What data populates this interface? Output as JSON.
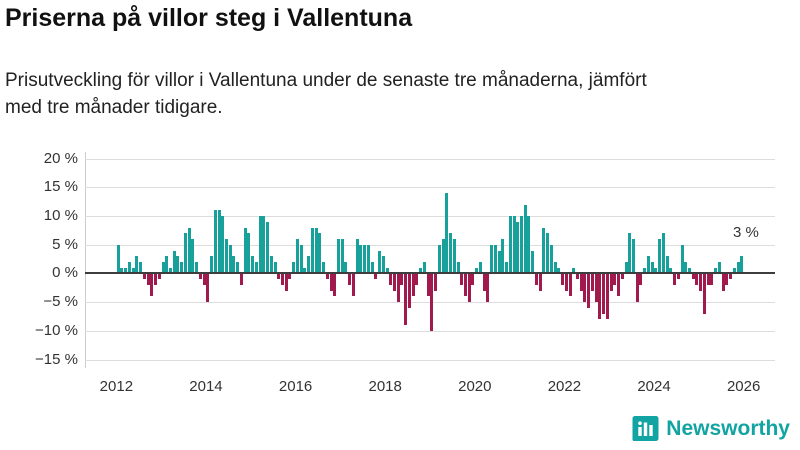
{
  "header": {
    "title": "Priserna på villor steg i Vallentuna",
    "subtitle": "Prisutveckling för villor i Vallentuna under de senaste tre månaderna, jämfört med tre månader tidigare."
  },
  "chart_data": {
    "type": "bar",
    "title": "Priserna på villor steg i Vallentuna",
    "xlabel": "",
    "ylabel": "",
    "frequency": "monthly",
    "x_start_year": 2012,
    "values": [
      5,
      1,
      1,
      2,
      1,
      3,
      2,
      -1,
      -2,
      -4,
      -2,
      -1,
      2,
      3,
      1,
      4,
      3,
      2,
      7,
      8,
      6,
      2,
      -1,
      -2,
      -5,
      3,
      11,
      11,
      10,
      6,
      5,
      3,
      2,
      -2,
      8,
      7,
      3,
      2,
      10,
      10,
      9,
      3,
      2,
      -1,
      -2,
      -3,
      -1,
      2,
      6,
      5,
      1,
      3,
      8,
      8,
      7,
      2,
      -1,
      -3,
      -4,
      6,
      6,
      2,
      -2,
      -4,
      6,
      5,
      5,
      5,
      2,
      -1,
      4,
      3,
      1,
      -2,
      -3,
      -5,
      -2,
      -9,
      -6,
      -4,
      -2,
      1,
      2,
      -4,
      -10,
      -3,
      5,
      6,
      14,
      7,
      6,
      2,
      -2,
      -4,
      -5,
      -2,
      1,
      2,
      -3,
      -5,
      5,
      5,
      4,
      6,
      2,
      10,
      10,
      9,
      10,
      12,
      10,
      4,
      -2,
      -3,
      8,
      7,
      5,
      2,
      1,
      -2,
      -3,
      -4,
      1,
      -1,
      -3,
      -5,
      -6,
      -3,
      -5,
      -8,
      -7,
      -8,
      -3,
      -2,
      -4,
      -1,
      2,
      7,
      6,
      -5,
      -2,
      1,
      3,
      2,
      1,
      6,
      7,
      3,
      1,
      -2,
      -1,
      5,
      2,
      1,
      -1,
      -2,
      -3,
      -7,
      -2,
      -2,
      1,
      2,
      -3,
      -2,
      -1,
      1,
      2,
      3
    ],
    "yticks": {
      "values": [
        20,
        15,
        10,
        5,
        0,
        -5,
        -10,
        -15
      ],
      "labels": [
        "20 %",
        "15 %",
        "10 %",
        "5 %",
        "0 %",
        "−5 %",
        "−10 %",
        "−15 %"
      ]
    },
    "xticks": [
      2012,
      2014,
      2016,
      2018,
      2020,
      2022,
      2024,
      2026
    ],
    "ylim": [
      -17.5,
      21.5
    ],
    "xlim": [
      2011.3,
      2026.7
    ],
    "grid": "horizontal",
    "legend": "none",
    "positive_color": "#18a09b",
    "negative_color": "#a11a4d",
    "annotation": {
      "text": "3 %",
      "x": 2026.05,
      "y": 7
    }
  },
  "footer": {
    "brand": "Newsworthy",
    "brand_color": "#12a3a3"
  }
}
